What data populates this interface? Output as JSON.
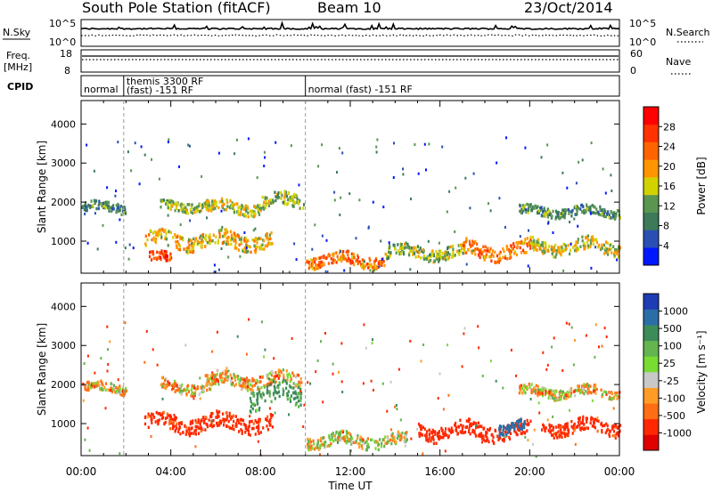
{
  "header": {
    "station": "South Pole Station (fitACF)",
    "beam": "Beam 10",
    "date": "23/Oct/2014"
  },
  "nsky_panel": {
    "left_label": "N.Sky",
    "left_ticks": [
      "10^5",
      "10^0"
    ],
    "right_label": "N.Search",
    "right_ticks": [
      "10^5",
      "10^0"
    ]
  },
  "freq_panel": {
    "left_label_1": "Freq.",
    "left_label_2": "[MHz]",
    "left_ticks": [
      "18",
      "8"
    ],
    "right_label": "Nave",
    "right_ticks": [
      "60",
      "0"
    ]
  },
  "cpid_panel": {
    "label": "CPID",
    "segments": [
      {
        "start": 0.0,
        "line1": "normal",
        "line2": ""
      },
      {
        "start": 1.9,
        "line1": "themis 3300 RF",
        "line2": "(fast) -151 RF"
      },
      {
        "start": 10.0,
        "line1": "normal (fast) -151 RF",
        "line2": ""
      }
    ]
  },
  "x_axis": {
    "label": "Time UT",
    "ticks": [
      "00:00",
      "04:00",
      "08:00",
      "12:00",
      "16:00",
      "20:00",
      "00:00"
    ],
    "range_hours": [
      0,
      24
    ]
  },
  "y_axis": {
    "label": "Slant Range [km]",
    "ticks": [
      "1000",
      "2000",
      "3000",
      "4000"
    ],
    "range_km": [
      180,
      4600
    ]
  },
  "power_colorbar": {
    "label": "Power [dB]",
    "ticks": [
      "4",
      "8",
      "12",
      "16",
      "20",
      "24",
      "28"
    ],
    "colors": [
      "#0018ff",
      "#2850b4",
      "#3c7a5a",
      "#5a9650",
      "#d2d200",
      "#ff9600",
      "#ff6400",
      "#ff3200",
      "#ff0000"
    ]
  },
  "velocity_colorbar": {
    "label": "Velocity [m s⁻¹]",
    "ticks": [
      "1000",
      "500",
      "100",
      "25",
      "-25",
      "-100",
      "-500",
      "-1000"
    ],
    "colors": [
      "#1e3cb4",
      "#2a6ea8",
      "#3c8c5a",
      "#64b450",
      "#78dc32",
      "#c8c8c8",
      "#ff9c28",
      "#ff6e14",
      "#ff2800",
      "#e00000"
    ]
  },
  "chart_data": {
    "type": "heatmap",
    "x": {
      "label": "Time UT",
      "unit": "hours",
      "range": [
        0,
        24
      ]
    },
    "y": {
      "label": "Slant Range [km]",
      "unit": "km",
      "range": [
        180,
        4600
      ]
    },
    "power_bands": [
      {
        "t0": 0.0,
        "t1": 2.0,
        "r_center": 1850,
        "r_width": 230,
        "power": 10
      },
      {
        "t0": 3.5,
        "t1": 6.0,
        "r_center": 1900,
        "r_width": 230,
        "power": 14
      },
      {
        "t0": 5.5,
        "t1": 8.0,
        "r_center": 1850,
        "r_width": 280,
        "power": 16
      },
      {
        "t0": 8.0,
        "t1": 9.9,
        "r_center": 2000,
        "r_width": 330,
        "power": 14
      },
      {
        "t0": 2.8,
        "t1": 8.5,
        "r_center": 1000,
        "r_width": 380,
        "power": 18
      },
      {
        "t0": 3.0,
        "t1": 4.0,
        "r_center": 550,
        "r_width": 250,
        "power": 26
      },
      {
        "t0": 10.0,
        "t1": 13.5,
        "r_center": 500,
        "r_width": 300,
        "power": 22
      },
      {
        "t0": 13.5,
        "t1": 17.0,
        "r_center": 700,
        "r_width": 300,
        "power": 14
      },
      {
        "t0": 17.0,
        "t1": 20.0,
        "r_center": 750,
        "r_width": 380,
        "power": 22
      },
      {
        "t0": 19.5,
        "t1": 24.0,
        "r_center": 1750,
        "r_width": 230,
        "power": 10
      },
      {
        "t0": 20.0,
        "t1": 24.0,
        "r_center": 850,
        "r_width": 330,
        "power": 16
      }
    ],
    "velocity_bands": [
      {
        "t0": 0.0,
        "t1": 2.0,
        "r_center": 1900,
        "r_width": 230,
        "velocity": 0
      },
      {
        "t0": 3.5,
        "t1": 6.0,
        "r_center": 1950,
        "r_width": 300,
        "velocity": 0
      },
      {
        "t0": 5.5,
        "t1": 9.8,
        "r_center": 2100,
        "r_width": 330,
        "velocity": 0
      },
      {
        "t0": 2.8,
        "t1": 8.5,
        "r_center": 1000,
        "r_width": 380,
        "velocity": -200
      },
      {
        "t0": 7.5,
        "t1": 9.8,
        "r_center": 1700,
        "r_width": 500,
        "velocity": 300
      },
      {
        "t0": 10.0,
        "t1": 14.5,
        "r_center": 550,
        "r_width": 300,
        "velocity": 60
      },
      {
        "t0": 15.0,
        "t1": 20.0,
        "r_center": 800,
        "r_width": 380,
        "velocity": -300
      },
      {
        "t0": 18.5,
        "t1": 19.8,
        "r_center": 900,
        "r_width": 280,
        "velocity": 700
      },
      {
        "t0": 19.5,
        "t1": 24.0,
        "r_center": 1800,
        "r_width": 250,
        "velocity": 0
      },
      {
        "t0": 20.5,
        "t1": 24.0,
        "r_center": 900,
        "r_width": 330,
        "velocity": -200
      }
    ]
  }
}
